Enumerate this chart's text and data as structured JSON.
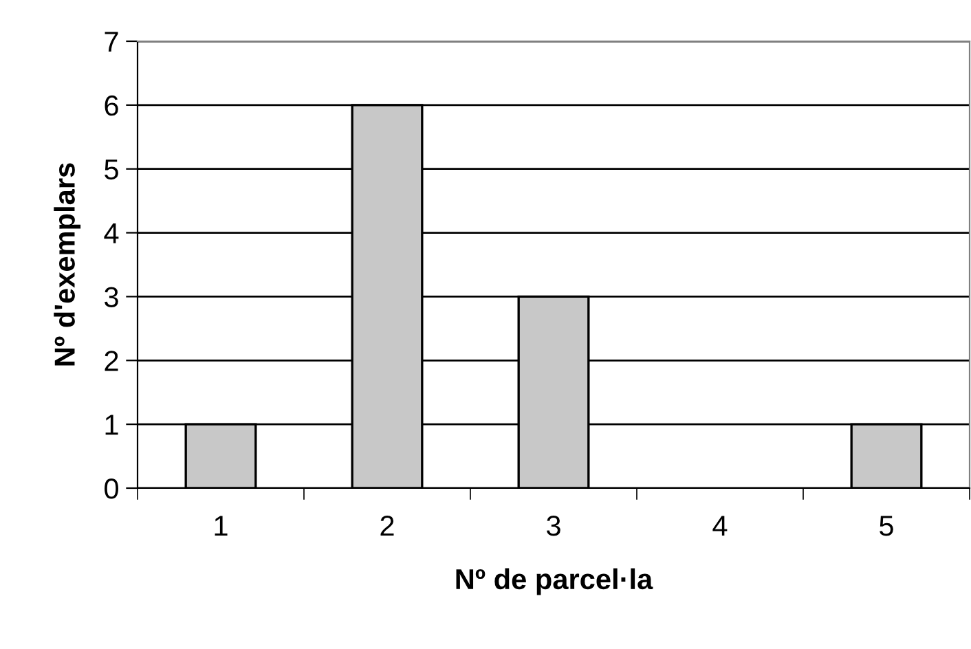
{
  "chart_data": {
    "type": "bar",
    "xlabel": "Nº de parcel·la",
    "ylabel": "Nº d'exemplars",
    "categories": [
      "1",
      "2",
      "3",
      "4",
      "5"
    ],
    "values": [
      1,
      6,
      3,
      0,
      1
    ],
    "color": "#c8c8c8",
    "ylim": [
      0,
      7
    ],
    "yticks": [
      0,
      1,
      2,
      3,
      4,
      5,
      6,
      7
    ],
    "grid": "y"
  }
}
